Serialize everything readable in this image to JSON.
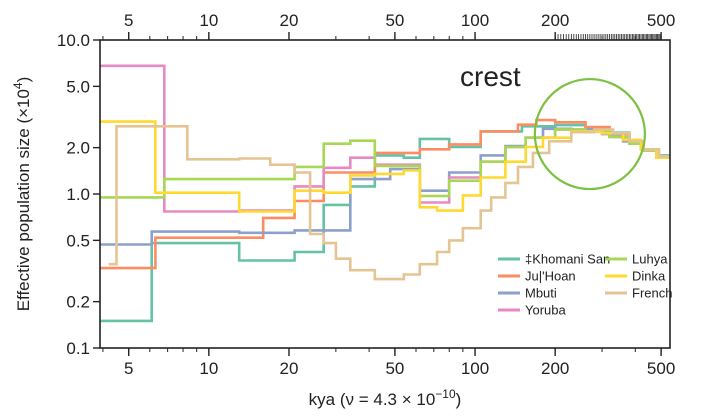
{
  "chart_data": {
    "type": "line",
    "step": true,
    "xscale": "log",
    "yscale": "log",
    "xlim": [
      3.9,
      540
    ],
    "ylim": [
      0.1,
      10.0
    ],
    "xlabel": "kya (ν = 4.3 × 10",
    "xlabel_exp": "−10",
    "xlabel_close": ")",
    "ylabel": "Effective population size (×10",
    "ylabel_exp": "4",
    "ylabel_close": ")",
    "x_ticks": [
      5,
      10,
      20,
      50,
      100,
      200,
      500
    ],
    "x_tick_labels": [
      "5",
      "10",
      "20",
      "50",
      "100",
      "200",
      "500"
    ],
    "y_ticks": [
      0.1,
      0.2,
      0.5,
      1.0,
      2.0,
      5.0,
      10.0
    ],
    "y_tick_labels": [
      "0.1",
      "0.2",
      "0.5",
      "1.0",
      "2.0",
      "5.0",
      "10.0"
    ],
    "top_axis": true,
    "grid": false,
    "legend_position": "lower-right",
    "annotation": {
      "text": "crest",
      "color": "#7cc142",
      "circle_center": [
        270,
        2.45
      ]
    },
    "series": [
      {
        "name": "‡Khomani San",
        "color": "#66c2a5",
        "points": [
          [
            3.9,
            0.15
          ],
          [
            6.1,
            0.15
          ],
          [
            6.1,
            0.48
          ],
          [
            13,
            0.48
          ],
          [
            13,
            0.37
          ],
          [
            21,
            0.37
          ],
          [
            21,
            0.42
          ],
          [
            27,
            0.42
          ],
          [
            27,
            0.85
          ],
          [
            34,
            0.85
          ],
          [
            34,
            1.12
          ],
          [
            42,
            1.12
          ],
          [
            42,
            1.78
          ],
          [
            54,
            1.78
          ],
          [
            54,
            1.72
          ],
          [
            62,
            1.72
          ],
          [
            62,
            2.28
          ],
          [
            80,
            2.28
          ],
          [
            80,
            2.02
          ],
          [
            105,
            2.02
          ],
          [
            105,
            2.55
          ],
          [
            150,
            2.55
          ],
          [
            150,
            2.75
          ],
          [
            200,
            2.75
          ],
          [
            200,
            2.8
          ],
          [
            260,
            2.8
          ],
          [
            260,
            2.7
          ],
          [
            320,
            2.7
          ],
          [
            320,
            2.5
          ],
          [
            380,
            2.5
          ],
          [
            380,
            2.2
          ],
          [
            430,
            2.2
          ],
          [
            430,
            1.95
          ],
          [
            490,
            1.95
          ],
          [
            490,
            1.78
          ],
          [
            540,
            1.78
          ]
        ]
      },
      {
        "name": "Ju|'Hoan",
        "color": "#fc8d62",
        "points": [
          [
            3.9,
            0.33
          ],
          [
            6.3,
            0.33
          ],
          [
            6.3,
            0.52
          ],
          [
            16,
            0.52
          ],
          [
            16,
            0.7
          ],
          [
            21,
            0.7
          ],
          [
            21,
            0.9
          ],
          [
            27,
            0.9
          ],
          [
            27,
            1.38
          ],
          [
            42,
            1.38
          ],
          [
            42,
            1.85
          ],
          [
            62,
            1.85
          ],
          [
            62,
            1.95
          ],
          [
            80,
            1.95
          ],
          [
            80,
            2.1
          ],
          [
            105,
            2.1
          ],
          [
            105,
            2.55
          ],
          [
            145,
            2.55
          ],
          [
            145,
            2.82
          ],
          [
            170,
            2.82
          ],
          [
            170,
            3.02
          ],
          [
            200,
            3.02
          ],
          [
            200,
            2.92
          ],
          [
            260,
            2.92
          ],
          [
            260,
            2.72
          ],
          [
            320,
            2.72
          ],
          [
            320,
            2.45
          ],
          [
            380,
            2.45
          ],
          [
            380,
            2.15
          ],
          [
            430,
            2.15
          ],
          [
            430,
            1.92
          ],
          [
            490,
            1.92
          ],
          [
            490,
            1.75
          ],
          [
            540,
            1.75
          ]
        ]
      },
      {
        "name": "Mbuti",
        "color": "#8da0cb",
        "points": [
          [
            3.9,
            0.47
          ],
          [
            6.1,
            0.47
          ],
          [
            6.1,
            0.57
          ],
          [
            13,
            0.57
          ],
          [
            13,
            0.56
          ],
          [
            21,
            0.56
          ],
          [
            21,
            0.58
          ],
          [
            34,
            0.58
          ],
          [
            34,
            1.25
          ],
          [
            48,
            1.25
          ],
          [
            48,
            1.45
          ],
          [
            62,
            1.45
          ],
          [
            62,
            1.05
          ],
          [
            80,
            1.05
          ],
          [
            80,
            1.38
          ],
          [
            105,
            1.38
          ],
          [
            105,
            1.78
          ],
          [
            130,
            1.78
          ],
          [
            130,
            2.05
          ],
          [
            155,
            2.05
          ],
          [
            155,
            2.32
          ],
          [
            180,
            2.32
          ],
          [
            180,
            2.65
          ],
          [
            230,
            2.65
          ],
          [
            230,
            2.62
          ],
          [
            300,
            2.62
          ],
          [
            300,
            2.45
          ],
          [
            360,
            2.45
          ],
          [
            360,
            2.2
          ],
          [
            420,
            2.2
          ],
          [
            420,
            1.95
          ],
          [
            480,
            1.95
          ],
          [
            480,
            1.72
          ],
          [
            540,
            1.72
          ]
        ]
      },
      {
        "name": "Yoruba",
        "color": "#e78ac3",
        "points": [
          [
            3.9,
            6.8
          ],
          [
            6.8,
            6.8
          ],
          [
            6.8,
            0.77
          ],
          [
            13,
            0.77
          ],
          [
            13,
            0.78
          ],
          [
            21,
            0.78
          ],
          [
            21,
            1.12
          ],
          [
            27,
            1.12
          ],
          [
            27,
            1.48
          ],
          [
            34,
            1.48
          ],
          [
            34,
            1.72
          ],
          [
            42,
            1.72
          ],
          [
            42,
            1.55
          ],
          [
            62,
            1.55
          ],
          [
            62,
            0.88
          ],
          [
            80,
            0.88
          ],
          [
            80,
            1.28
          ],
          [
            105,
            1.28
          ],
          [
            105,
            1.62
          ],
          [
            130,
            1.62
          ],
          [
            130,
            2.02
          ],
          [
            155,
            2.02
          ],
          [
            155,
            2.32
          ],
          [
            200,
            2.32
          ],
          [
            200,
            2.62
          ],
          [
            260,
            2.62
          ],
          [
            260,
            2.55
          ],
          [
            320,
            2.55
          ],
          [
            320,
            2.35
          ],
          [
            380,
            2.35
          ],
          [
            380,
            2.12
          ],
          [
            430,
            2.12
          ],
          [
            430,
            1.92
          ],
          [
            490,
            1.92
          ],
          [
            490,
            1.75
          ],
          [
            540,
            1.75
          ]
        ]
      },
      {
        "name": "Luhya",
        "color": "#a6d854",
        "points": [
          [
            3.9,
            0.95
          ],
          [
            6.8,
            0.95
          ],
          [
            6.8,
            1.25
          ],
          [
            21,
            1.25
          ],
          [
            21,
            1.5
          ],
          [
            27,
            1.5
          ],
          [
            27,
            2.12
          ],
          [
            34,
            2.12
          ],
          [
            34,
            2.22
          ],
          [
            42,
            2.22
          ],
          [
            42,
            1.52
          ],
          [
            62,
            1.52
          ],
          [
            62,
            0.97
          ],
          [
            80,
            0.97
          ],
          [
            80,
            1.22
          ],
          [
            105,
            1.22
          ],
          [
            105,
            1.62
          ],
          [
            130,
            1.62
          ],
          [
            130,
            2.02
          ],
          [
            155,
            2.02
          ],
          [
            155,
            2.32
          ],
          [
            200,
            2.32
          ],
          [
            200,
            2.62
          ],
          [
            260,
            2.62
          ],
          [
            260,
            2.55
          ],
          [
            320,
            2.55
          ],
          [
            320,
            2.35
          ],
          [
            380,
            2.35
          ],
          [
            380,
            2.12
          ],
          [
            430,
            2.12
          ],
          [
            430,
            1.92
          ],
          [
            490,
            1.92
          ],
          [
            490,
            1.75
          ],
          [
            540,
            1.75
          ]
        ]
      },
      {
        "name": "Dinka",
        "color": "#ffd92f",
        "points": [
          [
            3.9,
            2.95
          ],
          [
            6.3,
            2.95
          ],
          [
            6.3,
            1.02
          ],
          [
            13,
            1.02
          ],
          [
            13,
            0.77
          ],
          [
            21,
            0.77
          ],
          [
            21,
            1.05
          ],
          [
            27,
            1.05
          ],
          [
            27,
            1.02
          ],
          [
            34,
            1.02
          ],
          [
            34,
            1.32
          ],
          [
            42,
            1.32
          ],
          [
            42,
            1.35
          ],
          [
            54,
            1.35
          ],
          [
            54,
            1.42
          ],
          [
            62,
            1.42
          ],
          [
            62,
            0.82
          ],
          [
            72,
            0.82
          ],
          [
            72,
            0.78
          ],
          [
            90,
            0.78
          ],
          [
            90,
            0.98
          ],
          [
            105,
            0.98
          ],
          [
            105,
            1.28
          ],
          [
            130,
            1.28
          ],
          [
            130,
            1.62
          ],
          [
            155,
            1.62
          ],
          [
            155,
            2.02
          ],
          [
            180,
            2.02
          ],
          [
            180,
            2.32
          ],
          [
            230,
            2.32
          ],
          [
            230,
            2.55
          ],
          [
            300,
            2.55
          ],
          [
            300,
            2.48
          ],
          [
            360,
            2.48
          ],
          [
            360,
            2.25
          ],
          [
            420,
            2.25
          ],
          [
            420,
            1.95
          ],
          [
            480,
            1.95
          ],
          [
            480,
            1.72
          ],
          [
            540,
            1.72
          ]
        ]
      },
      {
        "name": "French",
        "color": "#e5c494",
        "points": [
          [
            4.2,
            0.35
          ],
          [
            4.5,
            0.35
          ],
          [
            4.5,
            2.75
          ],
          [
            8.3,
            2.75
          ],
          [
            8.3,
            1.68
          ],
          [
            13,
            1.68
          ],
          [
            13,
            1.7
          ],
          [
            17,
            1.7
          ],
          [
            17,
            1.55
          ],
          [
            21,
            1.55
          ],
          [
            21,
            1.38
          ],
          [
            24,
            1.38
          ],
          [
            24,
            0.55
          ],
          [
            27,
            0.55
          ],
          [
            27,
            0.48
          ],
          [
            30,
            0.48
          ],
          [
            30,
            0.38
          ],
          [
            34,
            0.38
          ],
          [
            34,
            0.32
          ],
          [
            42,
            0.32
          ],
          [
            42,
            0.28
          ],
          [
            54,
            0.28
          ],
          [
            54,
            0.3
          ],
          [
            62,
            0.3
          ],
          [
            62,
            0.35
          ],
          [
            72,
            0.35
          ],
          [
            72,
            0.42
          ],
          [
            80,
            0.42
          ],
          [
            80,
            0.5
          ],
          [
            90,
            0.5
          ],
          [
            90,
            0.6
          ],
          [
            105,
            0.6
          ],
          [
            105,
            0.78
          ],
          [
            115,
            0.78
          ],
          [
            115,
            0.95
          ],
          [
            130,
            0.95
          ],
          [
            130,
            1.18
          ],
          [
            145,
            1.18
          ],
          [
            145,
            1.5
          ],
          [
            165,
            1.5
          ],
          [
            165,
            1.85
          ],
          [
            190,
            1.85
          ],
          [
            190,
            2.2
          ],
          [
            230,
            2.2
          ],
          [
            230,
            2.52
          ],
          [
            280,
            2.52
          ],
          [
            280,
            2.62
          ],
          [
            330,
            2.62
          ],
          [
            330,
            2.48
          ],
          [
            380,
            2.48
          ],
          [
            380,
            2.2
          ],
          [
            430,
            2.2
          ],
          [
            430,
            1.95
          ],
          [
            490,
            1.95
          ],
          [
            490,
            1.75
          ],
          [
            540,
            1.75
          ]
        ]
      }
    ]
  }
}
